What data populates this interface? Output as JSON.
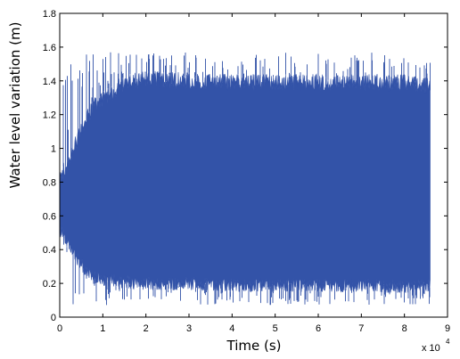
{
  "chart_data": {
    "type": "area",
    "title": "",
    "xlabel": "Time (s)",
    "ylabel": "Water level variation (m)",
    "xlim": [
      0,
      9
    ],
    "ylim": [
      0,
      1.8
    ],
    "x_multiplier_label": "x 10",
    "x_multiplier_exponent": "4",
    "x_ticks": [
      "0",
      "1",
      "2",
      "3",
      "4",
      "5",
      "6",
      "7",
      "8",
      "9"
    ],
    "y_ticks": [
      "0",
      "0.2",
      "0.4",
      "0.6",
      "0.8",
      "1",
      "1.2",
      "1.4",
      "1.6",
      "1.8"
    ],
    "grid": false,
    "legend": "none",
    "series": [
      {
        "color": "#3353a8",
        "x": [
          0,
          0.2,
          0.4,
          0.6,
          0.8,
          1.0,
          1.5,
          2.0,
          3.0,
          4.0,
          5.0,
          6.0,
          7.0,
          8.0,
          8.6
        ],
        "upper_envelope": [
          0.86,
          0.95,
          1.08,
          1.2,
          1.28,
          1.32,
          1.42,
          1.44,
          1.43,
          1.42,
          1.42,
          1.42,
          1.42,
          1.42,
          1.4
        ],
        "lower_envelope": [
          0.5,
          0.42,
          0.33,
          0.26,
          0.22,
          0.2,
          0.19,
          0.18,
          0.18,
          0.17,
          0.17,
          0.17,
          0.17,
          0.16,
          0.17
        ],
        "peak_max": 1.57,
        "trough_min": 0.07
      }
    ],
    "series_color": "#3353a8",
    "axis_color": "#000000",
    "background": "#ffffff"
  }
}
